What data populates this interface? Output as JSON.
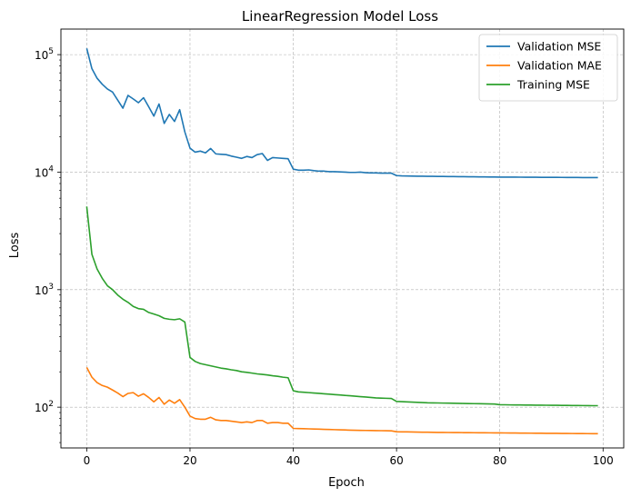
{
  "chart_data": {
    "type": "line",
    "title": "LinearRegression Model Loss",
    "xlabel": "Epoch",
    "ylabel": "Loss",
    "yscale": "log",
    "xlim": [
      -5,
      104
    ],
    "ylim": [
      45,
      165000
    ],
    "grid": true,
    "legend": "top-right",
    "x_ticks": [
      0,
      20,
      40,
      60,
      80,
      100
    ],
    "y_ticks": [
      {
        "value": 100,
        "base": "10",
        "exp": "2"
      },
      {
        "value": 1000,
        "base": "10",
        "exp": "3"
      },
      {
        "value": 10000,
        "base": "10",
        "exp": "4"
      },
      {
        "value": 100000,
        "base": "10",
        "exp": "5"
      }
    ],
    "series": [
      {
        "name": "Validation MSE",
        "color": "#1f77b4",
        "values": [
          113000,
          76000,
          63000,
          56000,
          51000,
          48000,
          41000,
          35000,
          45000,
          42000,
          39000,
          43000,
          36000,
          30000,
          38000,
          26000,
          31000,
          27000,
          34000,
          22000,
          16000,
          14800,
          15100,
          14600,
          15900,
          14300,
          14200,
          14100,
          13700,
          13400,
          13100,
          13600,
          13300,
          14100,
          14400,
          12600,
          13300,
          13200,
          13100,
          13000,
          10600,
          10400,
          10400,
          10450,
          10300,
          10200,
          10200,
          10100,
          10100,
          10050,
          10000,
          9950,
          9950,
          10000,
          9900,
          9850,
          9850,
          9800,
          9800,
          9800,
          9350,
          9300,
          9280,
          9260,
          9240,
          9230,
          9220,
          9210,
          9200,
          9190,
          9180,
          9170,
          9160,
          9150,
          9140,
          9130,
          9120,
          9110,
          9100,
          9090,
          9080,
          9075,
          9070,
          9065,
          9060,
          9055,
          9050,
          9045,
          9040,
          9035,
          9030,
          9025,
          9020,
          9015,
          9010,
          9005,
          9000,
          8995,
          8990,
          8985
        ]
      },
      {
        "name": "Validation MAE",
        "color": "#ff7f0e",
        "values": [
          218,
          180,
          162,
          153,
          148,
          140,
          132,
          123,
          131,
          133,
          124,
          130,
          121,
          111,
          121,
          106,
          115,
          108,
          116,
          100,
          84,
          80,
          79,
          79,
          82,
          78,
          77,
          77,
          76,
          75,
          74,
          75,
          74,
          77,
          77,
          73,
          74,
          74,
          73,
          73,
          66,
          65.8,
          65.6,
          65.4,
          65.2,
          65,
          64.8,
          64.6,
          64.4,
          64.2,
          64,
          63.8,
          63.6,
          63.5,
          63.4,
          63.3,
          63.2,
          63.1,
          63,
          62.9,
          61.8,
          61.7,
          61.6,
          61.5,
          61.4,
          61.3,
          61.2,
          61.1,
          61,
          60.95,
          60.9,
          60.85,
          60.8,
          60.75,
          60.7,
          60.65,
          60.6,
          60.55,
          60.5,
          60.45,
          60.4,
          60.35,
          60.3,
          60.25,
          60.2,
          60.15,
          60.1,
          60.05,
          60,
          59.95,
          59.9,
          59.85,
          59.8,
          59.75,
          59.7,
          59.65,
          59.6,
          59.55,
          59.5,
          59.45
        ]
      },
      {
        "name": "Training MSE",
        "color": "#2ca02c",
        "values": [
          5100,
          2000,
          1500,
          1250,
          1080,
          1000,
          900,
          830,
          780,
          720,
          690,
          680,
          640,
          620,
          600,
          570,
          560,
          555,
          565,
          530,
          265,
          245,
          235,
          230,
          225,
          220,
          215,
          212,
          208,
          205,
          200,
          198,
          195,
          192,
          190,
          188,
          185,
          183,
          180,
          178,
          138,
          135,
          134,
          133,
          132,
          131,
          130,
          129,
          128,
          127,
          126,
          125,
          124,
          123,
          122,
          121,
          120,
          119.5,
          119,
          118.5,
          112,
          111.5,
          111,
          110.5,
          110,
          109.5,
          109,
          108.8,
          108.6,
          108.4,
          108.2,
          108,
          107.8,
          107.6,
          107.4,
          107.2,
          107,
          106.8,
          106.6,
          106.4,
          105,
          104.8,
          104.6,
          104.5,
          104.4,
          104.3,
          104.2,
          104.1,
          104,
          103.9,
          103.8,
          103.7,
          103.6,
          103.5,
          103.4,
          103.3,
          103.2,
          103.1,
          103,
          103
        ]
      }
    ]
  }
}
